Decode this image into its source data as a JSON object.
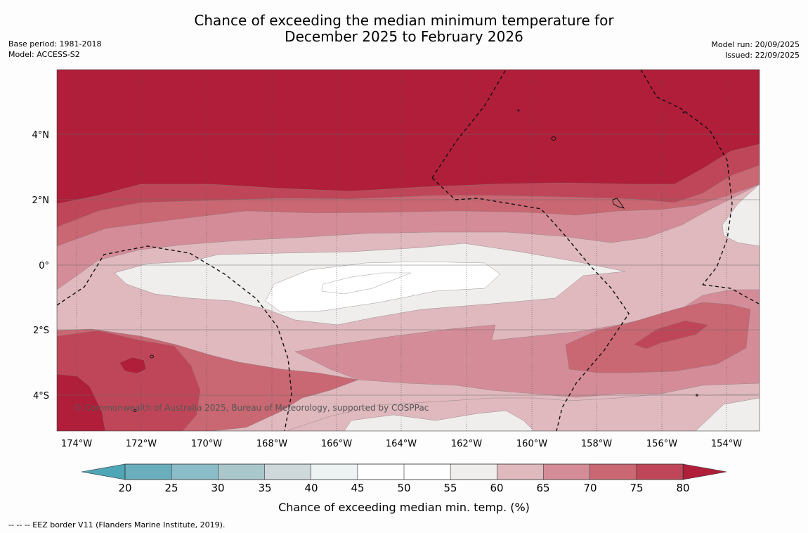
{
  "title": {
    "line1": "Chance of exceeding the median minimum temperature for",
    "line2": "December 2025 to February 2026"
  },
  "meta_left": {
    "base_period": "Base period: 1981-2018",
    "model": "Model: ACCESS-S2"
  },
  "meta_right": {
    "model_run": "Model run: 20/09/2025",
    "issued": "Issued: 22/09/2025"
  },
  "map": {
    "lat_labels": [
      "4°N",
      "2°N",
      "0°",
      "2°S",
      "4°S"
    ],
    "lon_labels": [
      "174°W",
      "172°W",
      "170°W",
      "168°W",
      "166°W",
      "164°W",
      "162°W",
      "160°W",
      "158°W",
      "156°W",
      "154°W"
    ],
    "copyright": "© Commonwealth of Australia 2025, Bureau of Meteorology, supported by COSPPac"
  },
  "colorbar": {
    "ticks": [
      "20",
      "25",
      "30",
      "35",
      "40",
      "45",
      "50",
      "55",
      "60",
      "65",
      "70",
      "75",
      "80"
    ],
    "colors": [
      "#6aaebd",
      "#8bbdc8",
      "#aac7cc",
      "#cfd8da",
      "#edf2f2",
      "#ffffff",
      "#ffffff",
      "#efeeed",
      "#dfb9be",
      "#d48d98",
      "#c96772",
      "#bf4658"
    ],
    "below_color": "#4ea6b6",
    "above_color": "#b01e3a",
    "label": "Chance of exceeding median min. temp. (%)"
  },
  "footnote": "--  --  -- EEZ border V11 (Flanders Marine Institute, 2019)."
}
